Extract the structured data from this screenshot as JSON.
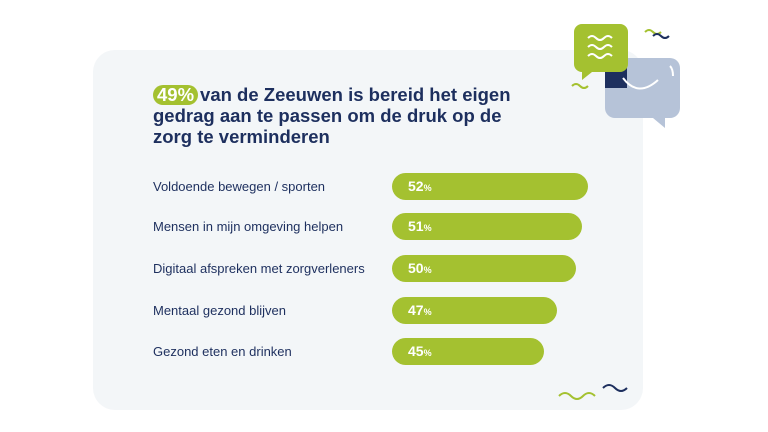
{
  "headline": {
    "highlight": "49%",
    "text": "van de Zeeuwen is bereid het eigen gedrag aan te passen om de druk op de zorg te verminderen"
  },
  "colors": {
    "accent": "#a4c130",
    "navy": "#1d2f5e",
    "card": "#f3f6f8",
    "bubble_gray": "#b6c3d8"
  },
  "icons": [
    "chat-bubbles-icon",
    "wave-icon"
  ],
  "chart_data": {
    "type": "bar",
    "orientation": "horizontal",
    "categories": [
      "Voldoende bewegen / sporten",
      "Mensen in mijn omgeving helpen",
      "Digitaal afspreken met zorgverleners",
      "Mentaal gezond blijven",
      "Gezond eten en drinken"
    ],
    "values": [
      52,
      51,
      50,
      47,
      45
    ],
    "unit": "%",
    "grid": false
  }
}
